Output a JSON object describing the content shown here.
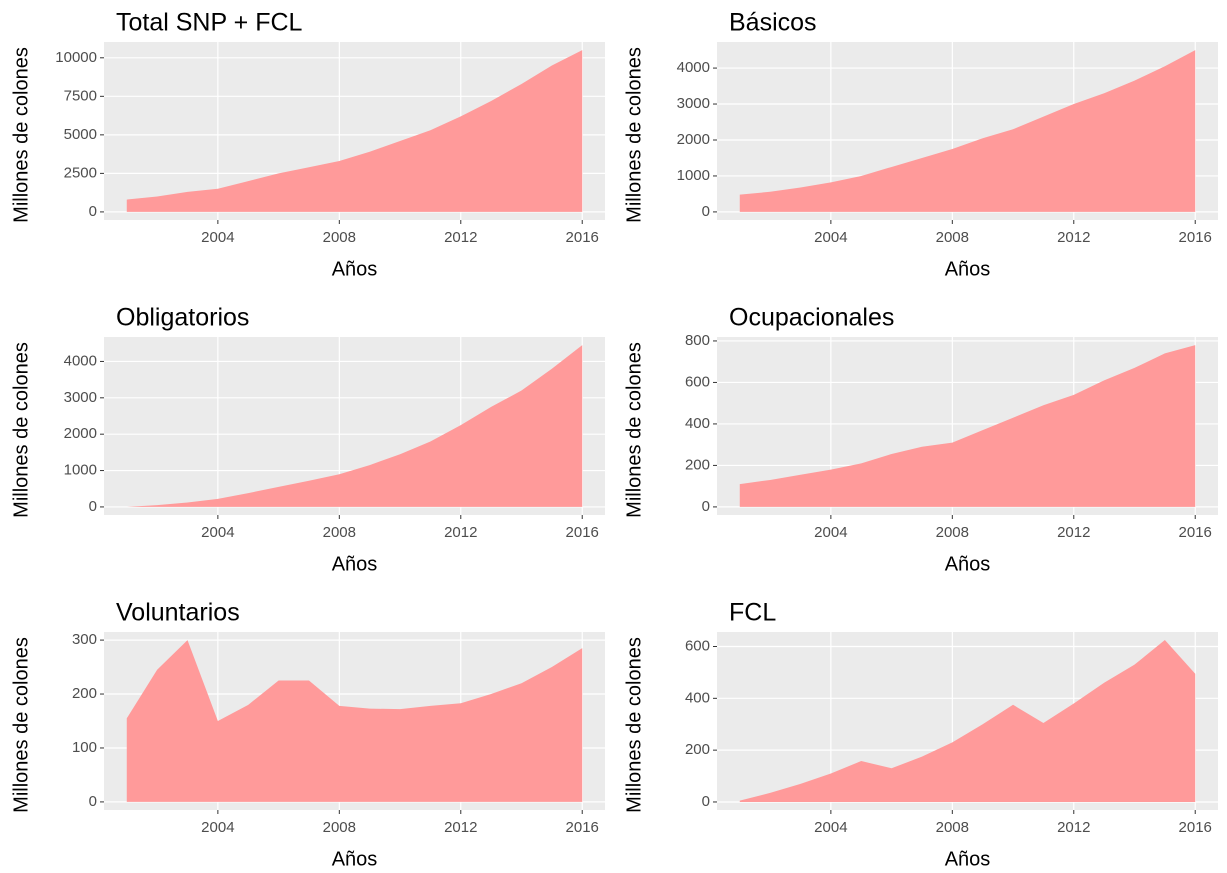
{
  "chart_data": [
    {
      "type": "area",
      "title": "Total SNP + FCL",
      "xlabel": "Años",
      "ylabel": "Millones de colones",
      "color": "#ff9a9a",
      "grid": true,
      "x": [
        2001,
        2002,
        2003,
        2004,
        2005,
        2006,
        2007,
        2008,
        2009,
        2010,
        2011,
        2012,
        2013,
        2014,
        2015,
        2016
      ],
      "values": [
        800,
        1000,
        1300,
        1500,
        2000,
        2500,
        2900,
        3300,
        3900,
        4600,
        5300,
        6200,
        7200,
        8300,
        9500,
        10500
      ],
      "xlim": [
        2000.25,
        2016.75
      ],
      "xticks": [
        2004,
        2008,
        2012,
        2016
      ],
      "ylim": [
        -525,
        11025
      ],
      "yticks": [
        0,
        2500,
        5000,
        7500,
        10000
      ]
    },
    {
      "type": "area",
      "title": "Básicos",
      "xlabel": "Años",
      "ylabel": "Millones de colones",
      "color": "#ff9a9a",
      "grid": true,
      "x": [
        2001,
        2002,
        2003,
        2004,
        2005,
        2006,
        2007,
        2008,
        2009,
        2010,
        2011,
        2012,
        2013,
        2014,
        2015,
        2016
      ],
      "values": [
        480,
        560,
        680,
        820,
        1000,
        1250,
        1500,
        1750,
        2050,
        2300,
        2650,
        3000,
        3300,
        3650,
        4050,
        4500
      ],
      "xlim": [
        2000.25,
        2016.75
      ],
      "xticks": [
        2004,
        2008,
        2012,
        2016
      ],
      "ylim": [
        -225,
        4725
      ],
      "yticks": [
        0,
        1000,
        2000,
        3000,
        4000
      ]
    },
    {
      "type": "area",
      "title": "Obligatorios",
      "xlabel": "Años",
      "ylabel": "Millones de colones",
      "color": "#ff9a9a",
      "grid": true,
      "x": [
        2001,
        2002,
        2003,
        2004,
        2005,
        2006,
        2007,
        2008,
        2009,
        2010,
        2011,
        2012,
        2013,
        2014,
        2015,
        2016
      ],
      "values": [
        0,
        50,
        120,
        220,
        380,
        550,
        720,
        900,
        1150,
        1450,
        1800,
        2250,
        2750,
        3200,
        3800,
        4450
      ],
      "xlim": [
        2000.25,
        2016.75
      ],
      "xticks": [
        2004,
        2008,
        2012,
        2016
      ],
      "ylim": [
        -222,
        4672
      ],
      "yticks": [
        0,
        1000,
        2000,
        3000,
        4000
      ]
    },
    {
      "type": "area",
      "title": "Ocupacionales",
      "xlabel": "Años",
      "ylabel": "Millones de colones",
      "color": "#ff9a9a",
      "grid": true,
      "x": [
        2001,
        2002,
        2003,
        2004,
        2005,
        2006,
        2007,
        2008,
        2009,
        2010,
        2011,
        2012,
        2013,
        2014,
        2015,
        2016
      ],
      "values": [
        110,
        130,
        155,
        180,
        210,
        255,
        290,
        310,
        370,
        430,
        490,
        540,
        610,
        670,
        740,
        780
      ],
      "xlim": [
        2000.25,
        2016.75
      ],
      "xticks": [
        2004,
        2008,
        2012,
        2016
      ],
      "ylim": [
        -39,
        819
      ],
      "yticks": [
        0,
        200,
        400,
        600,
        800
      ]
    },
    {
      "type": "area",
      "title": "Voluntarios",
      "xlabel": "Años",
      "ylabel": "Millones de colones",
      "color": "#ff9a9a",
      "grid": true,
      "x": [
        2001,
        2002,
        2003,
        2004,
        2005,
        2006,
        2007,
        2008,
        2009,
        2010,
        2011,
        2012,
        2013,
        2014,
        2015,
        2016
      ],
      "values": [
        155,
        245,
        300,
        150,
        180,
        225,
        225,
        178,
        173,
        172,
        178,
        183,
        200,
        220,
        250,
        285
      ],
      "xlim": [
        2000.25,
        2016.75
      ],
      "xticks": [
        2004,
        2008,
        2012,
        2016
      ],
      "ylim": [
        -15,
        315
      ],
      "yticks": [
        0,
        100,
        200,
        300
      ]
    },
    {
      "type": "area",
      "title": "FCL",
      "xlabel": "Años",
      "ylabel": "Millones de colones",
      "color": "#ff9a9a",
      "grid": true,
      "x": [
        2001,
        2002,
        2003,
        2004,
        2005,
        2006,
        2007,
        2008,
        2009,
        2010,
        2011,
        2012,
        2013,
        2014,
        2015,
        2016
      ],
      "values": [
        5,
        35,
        70,
        110,
        158,
        130,
        175,
        230,
        300,
        375,
        305,
        380,
        460,
        530,
        625,
        495
      ],
      "xlim": [
        2000.25,
        2016.75
      ],
      "xticks": [
        2004,
        2008,
        2012,
        2016
      ],
      "ylim": [
        -31,
        656
      ],
      "yticks": [
        0,
        200,
        400,
        600
      ]
    }
  ]
}
